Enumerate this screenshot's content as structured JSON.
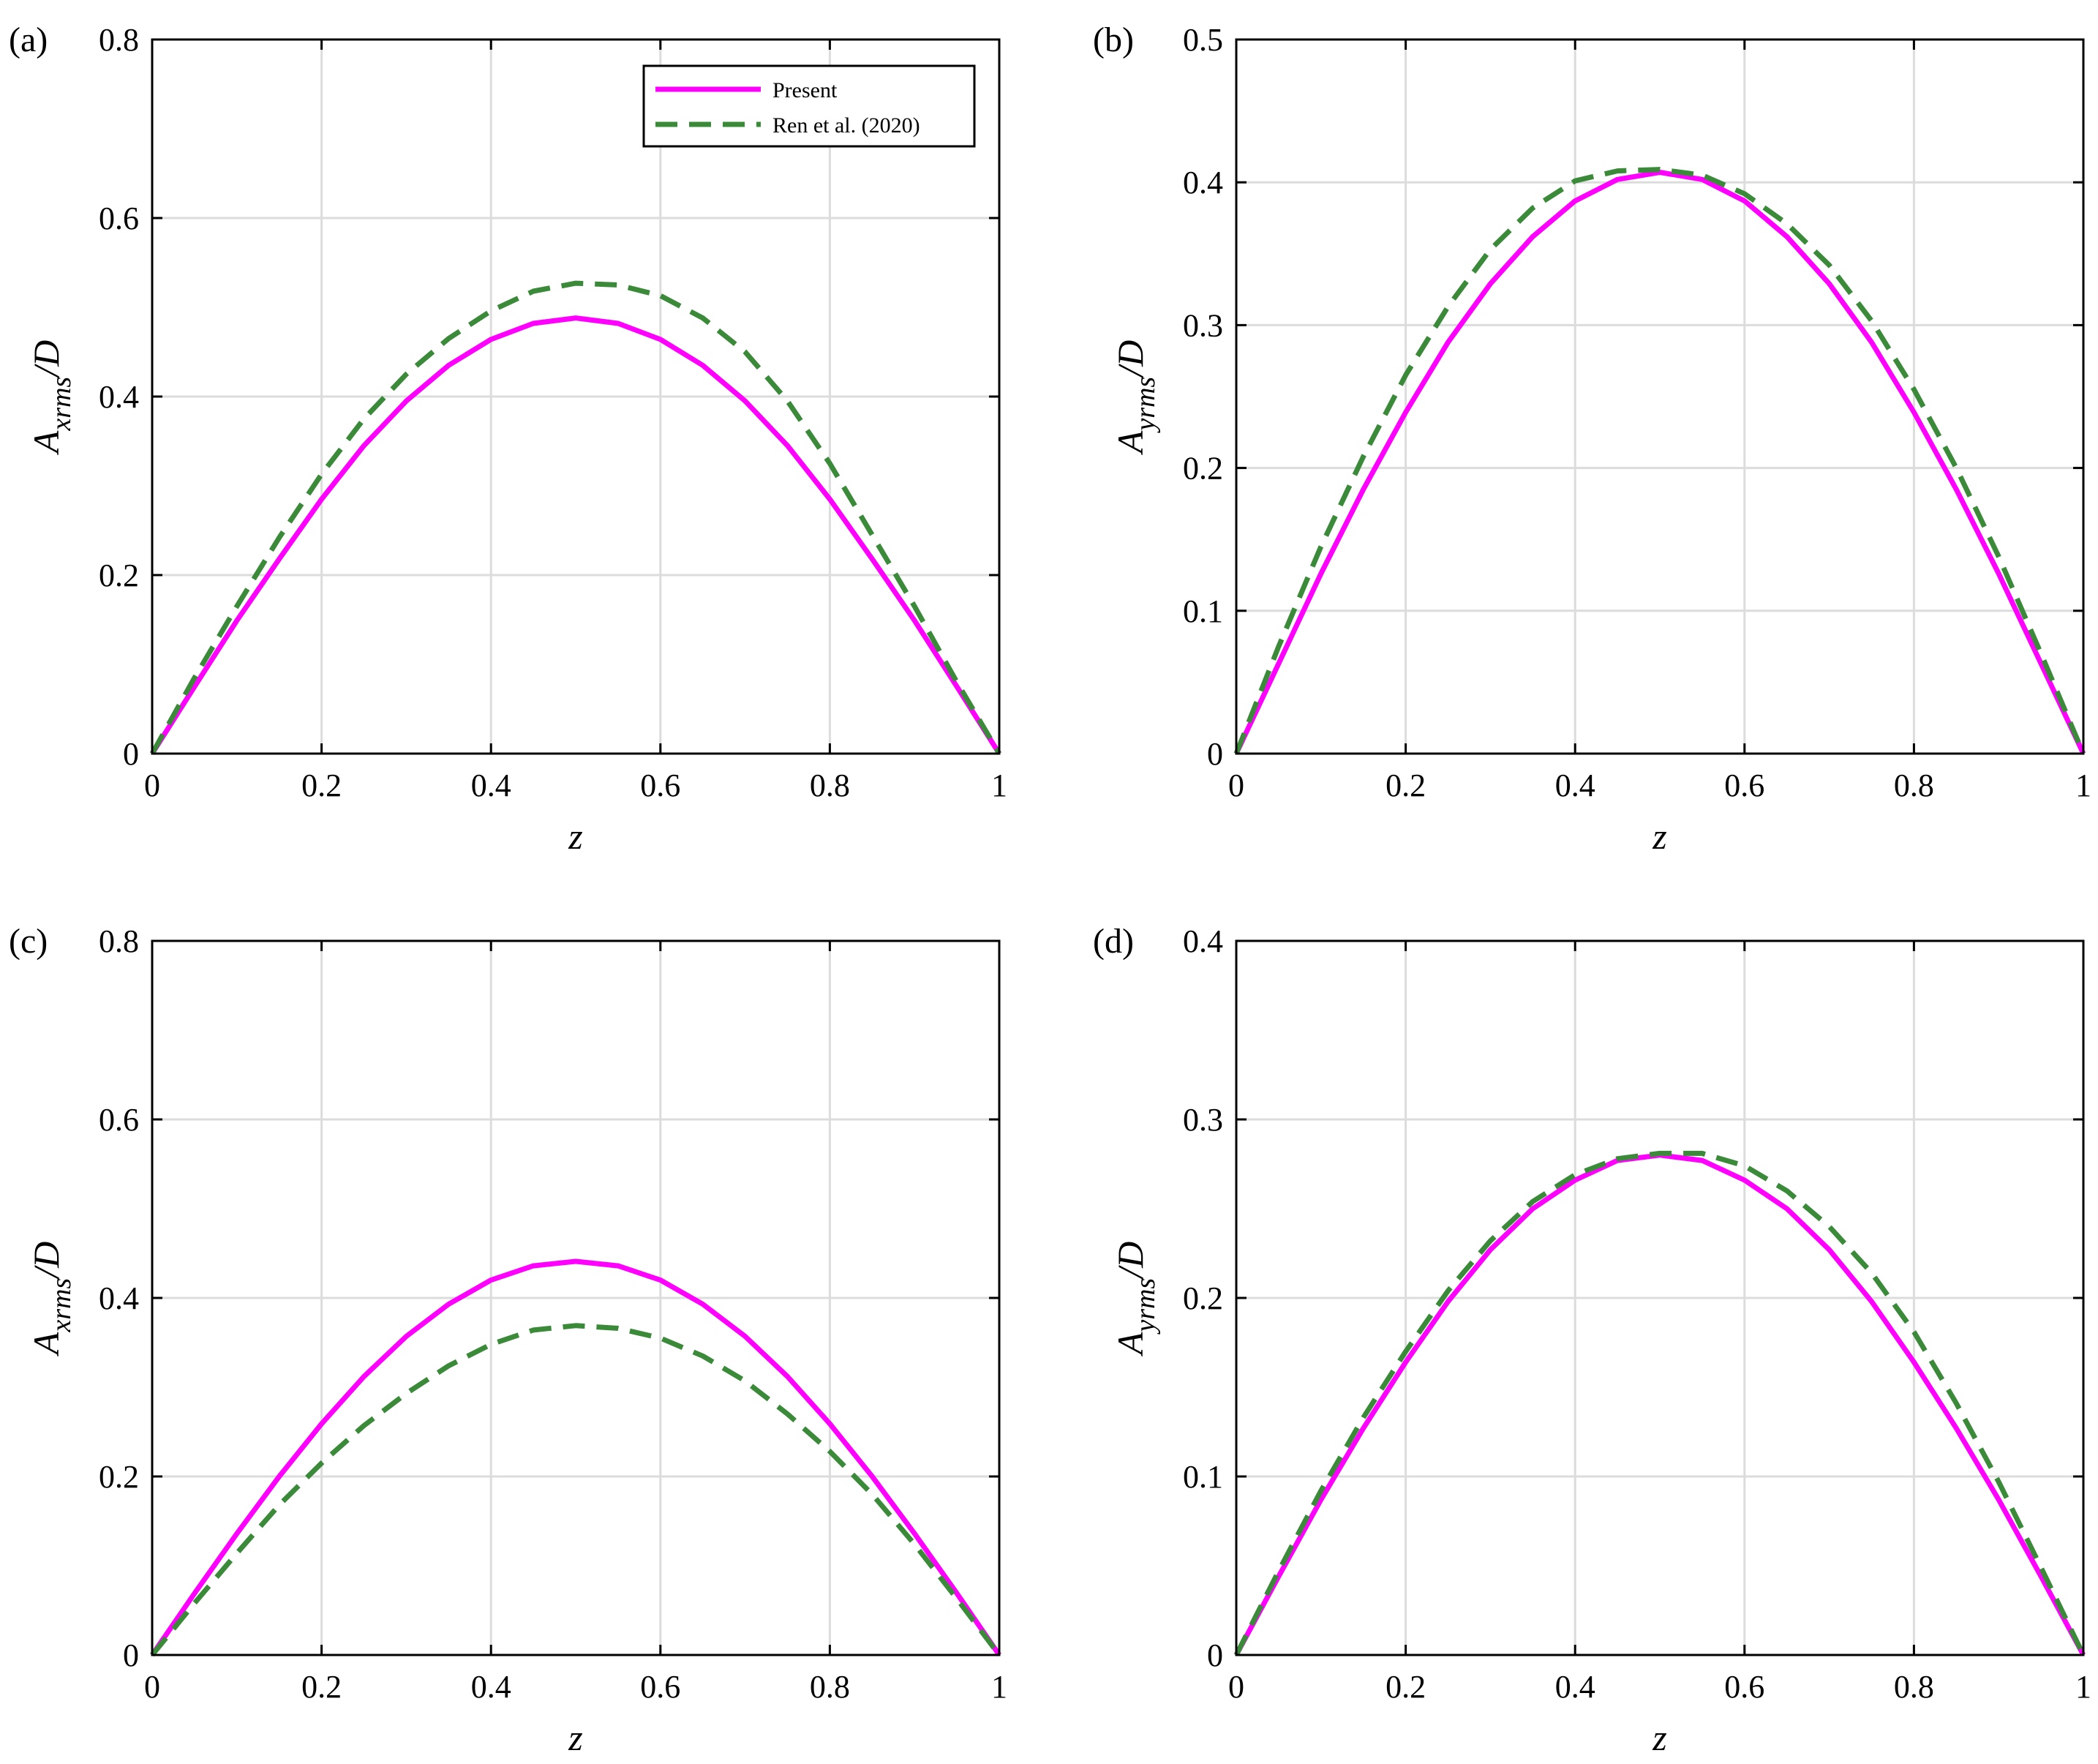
{
  "chart_data": [
    {
      "type": "line",
      "panel_label": "(a)",
      "xlabel": "z",
      "ylabel": {
        "main": "A",
        "sub": "xrms",
        "suffix": "/D"
      },
      "xlim": [
        0,
        1
      ],
      "ylim": [
        0,
        0.8
      ],
      "xticks": [
        "0",
        "0.2",
        "0.4",
        "0.6",
        "0.8",
        "1"
      ],
      "yticks": [
        "0",
        "0.2",
        "0.4",
        "0.6",
        "0.8"
      ],
      "grid": true,
      "legend": {
        "placement": "top-right",
        "entries": [
          "Present",
          "Ren et al. (2020)"
        ]
      },
      "series": [
        {
          "name": "Present",
          "color": "#ff00ff",
          "dash": "solid",
          "x": [
            0,
            0.05,
            0.1,
            0.15,
            0.2,
            0.25,
            0.3,
            0.35,
            0.4,
            0.45,
            0.5,
            0.55,
            0.6,
            0.65,
            0.7,
            0.75,
            0.8,
            0.85,
            0.9,
            0.95,
            1
          ],
          "y": [
            0,
            0.075,
            0.149,
            0.218,
            0.285,
            0.345,
            0.395,
            0.435,
            0.464,
            0.482,
            0.488,
            0.482,
            0.464,
            0.435,
            0.395,
            0.345,
            0.285,
            0.218,
            0.149,
            0.075,
            0
          ]
        },
        {
          "name": "Ren et al. (2020)",
          "color": "#3a8a3a",
          "dash": "dashed",
          "x": [
            0,
            0.05,
            0.1,
            0.15,
            0.2,
            0.25,
            0.3,
            0.35,
            0.4,
            0.45,
            0.5,
            0.55,
            0.6,
            0.65,
            0.7,
            0.75,
            0.8,
            0.85,
            0.9,
            0.95,
            1
          ],
          "y": [
            0,
            0.085,
            0.165,
            0.242,
            0.313,
            0.375,
            0.425,
            0.465,
            0.496,
            0.518,
            0.527,
            0.525,
            0.513,
            0.488,
            0.45,
            0.395,
            0.325,
            0.245,
            0.165,
            0.08,
            0
          ]
        }
      ]
    },
    {
      "type": "line",
      "panel_label": "(b)",
      "xlabel": "z",
      "ylabel": {
        "main": "A",
        "sub": "yrms",
        "suffix": "/D"
      },
      "xlim": [
        0,
        1
      ],
      "ylim": [
        0,
        0.5
      ],
      "xticks": [
        "0",
        "0.2",
        "0.4",
        "0.6",
        "0.8",
        "1"
      ],
      "yticks": [
        "0",
        "0.1",
        "0.2",
        "0.3",
        "0.4",
        "0.5"
      ],
      "grid": true,
      "series": [
        {
          "name": "Present",
          "color": "#ff00ff",
          "dash": "solid",
          "x": [
            0,
            0.05,
            0.1,
            0.15,
            0.2,
            0.25,
            0.3,
            0.35,
            0.4,
            0.45,
            0.5,
            0.55,
            0.6,
            0.65,
            0.7,
            0.75,
            0.8,
            0.85,
            0.9,
            0.95,
            1
          ],
          "y": [
            0,
            0.063,
            0.126,
            0.185,
            0.239,
            0.288,
            0.329,
            0.362,
            0.387,
            0.402,
            0.407,
            0.402,
            0.387,
            0.362,
            0.329,
            0.288,
            0.239,
            0.185,
            0.126,
            0.063,
            0
          ]
        },
        {
          "name": "Ren et al. (2020)",
          "color": "#3a8a3a",
          "dash": "dashed",
          "x": [
            0,
            0.05,
            0.1,
            0.15,
            0.2,
            0.25,
            0.3,
            0.35,
            0.4,
            0.45,
            0.5,
            0.55,
            0.6,
            0.65,
            0.7,
            0.75,
            0.8,
            0.85,
            0.9,
            0.95,
            1
          ],
          "y": [
            0,
            0.075,
            0.145,
            0.208,
            0.265,
            0.313,
            0.353,
            0.382,
            0.401,
            0.408,
            0.409,
            0.405,
            0.392,
            0.371,
            0.342,
            0.303,
            0.255,
            0.2,
            0.138,
            0.07,
            0
          ]
        }
      ]
    },
    {
      "type": "line",
      "panel_label": "(c)",
      "xlabel": "z",
      "ylabel": {
        "main": "A",
        "sub": "xrms",
        "suffix": "/D"
      },
      "xlim": [
        0,
        1
      ],
      "ylim": [
        0,
        0.8
      ],
      "xticks": [
        "0",
        "0.2",
        "0.4",
        "0.6",
        "0.8",
        "1"
      ],
      "yticks": [
        "0",
        "0.2",
        "0.4",
        "0.6",
        "0.8"
      ],
      "grid": true,
      "series": [
        {
          "name": "Present",
          "color": "#ff00ff",
          "dash": "solid",
          "x": [
            0,
            0.05,
            0.1,
            0.15,
            0.2,
            0.25,
            0.3,
            0.35,
            0.4,
            0.45,
            0.5,
            0.55,
            0.6,
            0.65,
            0.7,
            0.75,
            0.8,
            0.85,
            0.9,
            0.95,
            1
          ],
          "y": [
            0,
            0.069,
            0.136,
            0.2,
            0.259,
            0.312,
            0.357,
            0.393,
            0.42,
            0.436,
            0.441,
            0.436,
            0.42,
            0.393,
            0.357,
            0.312,
            0.259,
            0.2,
            0.136,
            0.069,
            0
          ]
        },
        {
          "name": "Ren et al. (2020)",
          "color": "#3a8a3a",
          "dash": "dashed",
          "x": [
            0,
            0.05,
            0.1,
            0.15,
            0.2,
            0.25,
            0.3,
            0.35,
            0.4,
            0.45,
            0.5,
            0.55,
            0.6,
            0.65,
            0.7,
            0.75,
            0.8,
            0.85,
            0.9,
            0.95,
            1
          ],
          "y": [
            0,
            0.058,
            0.114,
            0.168,
            0.215,
            0.257,
            0.293,
            0.324,
            0.348,
            0.364,
            0.369,
            0.366,
            0.355,
            0.335,
            0.307,
            0.27,
            0.228,
            0.18,
            0.124,
            0.063,
            0
          ]
        }
      ]
    },
    {
      "type": "line",
      "panel_label": "(d)",
      "xlabel": "z",
      "ylabel": {
        "main": "A",
        "sub": "yrms",
        "suffix": "/D"
      },
      "xlim": [
        0,
        1
      ],
      "ylim": [
        0,
        0.4
      ],
      "xticks": [
        "0",
        "0.2",
        "0.4",
        "0.6",
        "0.8",
        "1"
      ],
      "yticks": [
        "0",
        "0.1",
        "0.2",
        "0.3",
        "0.4"
      ],
      "grid": true,
      "series": [
        {
          "name": "Present",
          "color": "#ff00ff",
          "dash": "solid",
          "x": [
            0,
            0.05,
            0.1,
            0.15,
            0.2,
            0.25,
            0.3,
            0.35,
            0.4,
            0.45,
            0.5,
            0.55,
            0.6,
            0.65,
            0.7,
            0.75,
            0.8,
            0.85,
            0.9,
            0.95,
            1
          ],
          "y": [
            0,
            0.044,
            0.087,
            0.127,
            0.164,
            0.198,
            0.227,
            0.25,
            0.266,
            0.277,
            0.28,
            0.277,
            0.266,
            0.25,
            0.227,
            0.198,
            0.164,
            0.127,
            0.087,
            0.044,
            0
          ]
        },
        {
          "name": "Ren et al. (2020)",
          "color": "#3a8a3a",
          "dash": "dashed",
          "x": [
            0,
            0.05,
            0.1,
            0.15,
            0.2,
            0.25,
            0.3,
            0.35,
            0.4,
            0.45,
            0.5,
            0.55,
            0.6,
            0.65,
            0.7,
            0.75,
            0.8,
            0.85,
            0.9,
            0.95,
            1
          ],
          "y": [
            0,
            0.047,
            0.092,
            0.133,
            0.17,
            0.204,
            0.232,
            0.254,
            0.269,
            0.278,
            0.281,
            0.281,
            0.274,
            0.26,
            0.24,
            0.214,
            0.181,
            0.141,
            0.097,
            0.049,
            0
          ]
        }
      ]
    }
  ]
}
